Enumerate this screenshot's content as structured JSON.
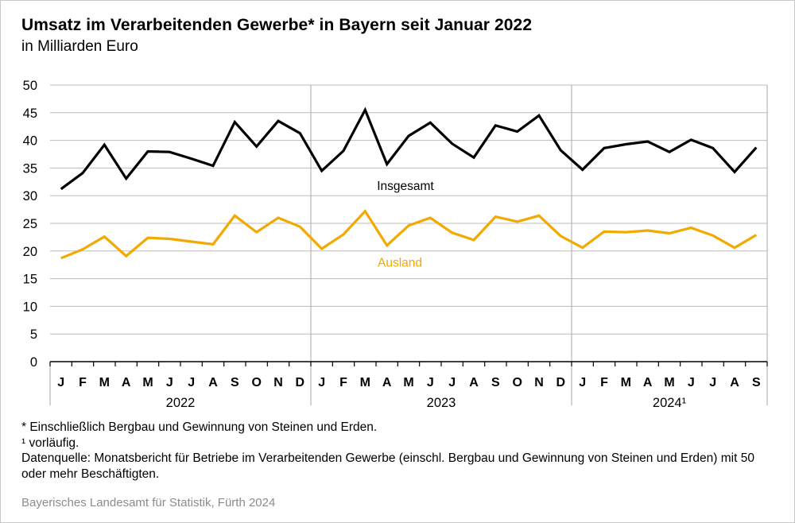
{
  "header": {
    "title": "Umsatz im Verarbeitenden Gewerbe* in Bayern seit Januar 2022",
    "subtitle": "in Milliarden Euro"
  },
  "footer": {
    "note_star": "* Einschließlich Bergbau und Gewinnung von Steinen und Erden.",
    "note_one": "¹  vorläufig.",
    "source": "Datenquelle: Monatsbericht für Betriebe im Verarbeitenden Gewerbe (einschl. Bergbau und Gewinnung von Steinen und Erden) mit 50 oder mehr Beschäftigten.",
    "credit": "Bayerisches Landesamt für Statistik, Fürth 2024"
  },
  "colors": {
    "insgesamt": "#000000",
    "ausland": "#f2a900",
    "grid": "#bdbdbd"
  },
  "chart_data": {
    "type": "line",
    "title": "Umsatz im Verarbeitenden Gewerbe* in Bayern seit Januar 2022",
    "subtitle": "in Milliarden Euro",
    "ylim": [
      0,
      50
    ],
    "yticks": [
      0,
      5,
      10,
      15,
      20,
      25,
      30,
      35,
      40,
      45,
      50
    ],
    "grid": true,
    "x": [
      "J",
      "F",
      "M",
      "A",
      "M",
      "J",
      "J",
      "A",
      "S",
      "O",
      "N",
      "D",
      "J",
      "F",
      "M",
      "A",
      "M",
      "J",
      "J",
      "A",
      "S",
      "O",
      "N",
      "D",
      "J",
      "F",
      "M",
      "A",
      "M",
      "J",
      "J",
      "A",
      "S"
    ],
    "year_groups": [
      {
        "label": "2022",
        "months": 12
      },
      {
        "label": "2023",
        "months": 12
      },
      {
        "label": "2024¹",
        "months": 9
      }
    ],
    "series": [
      {
        "name": "Insgesamt",
        "color": "#000000",
        "values": [
          31.2,
          34.1,
          39.2,
          33.1,
          38.0,
          37.9,
          36.7,
          35.4,
          43.3,
          38.9,
          43.5,
          41.3,
          34.5,
          38.1,
          45.5,
          35.7,
          40.8,
          43.2,
          39.4,
          36.9,
          42.7,
          41.6,
          44.5,
          38.2,
          34.7,
          38.6,
          39.3,
          39.8,
          37.9,
          40.1,
          38.6,
          34.3,
          38.7
        ]
      },
      {
        "name": "Ausland",
        "color": "#f2a900",
        "values": [
          18.7,
          20.3,
          22.6,
          19.1,
          22.4,
          22.2,
          21.7,
          21.2,
          26.4,
          23.4,
          26.0,
          24.4,
          20.4,
          23.0,
          27.2,
          21.0,
          24.6,
          26.0,
          23.3,
          22.0,
          26.2,
          25.3,
          26.4,
          22.7,
          20.6,
          23.5,
          23.4,
          23.7,
          23.2,
          24.2,
          22.8,
          20.6,
          22.9
        ]
      }
    ]
  }
}
